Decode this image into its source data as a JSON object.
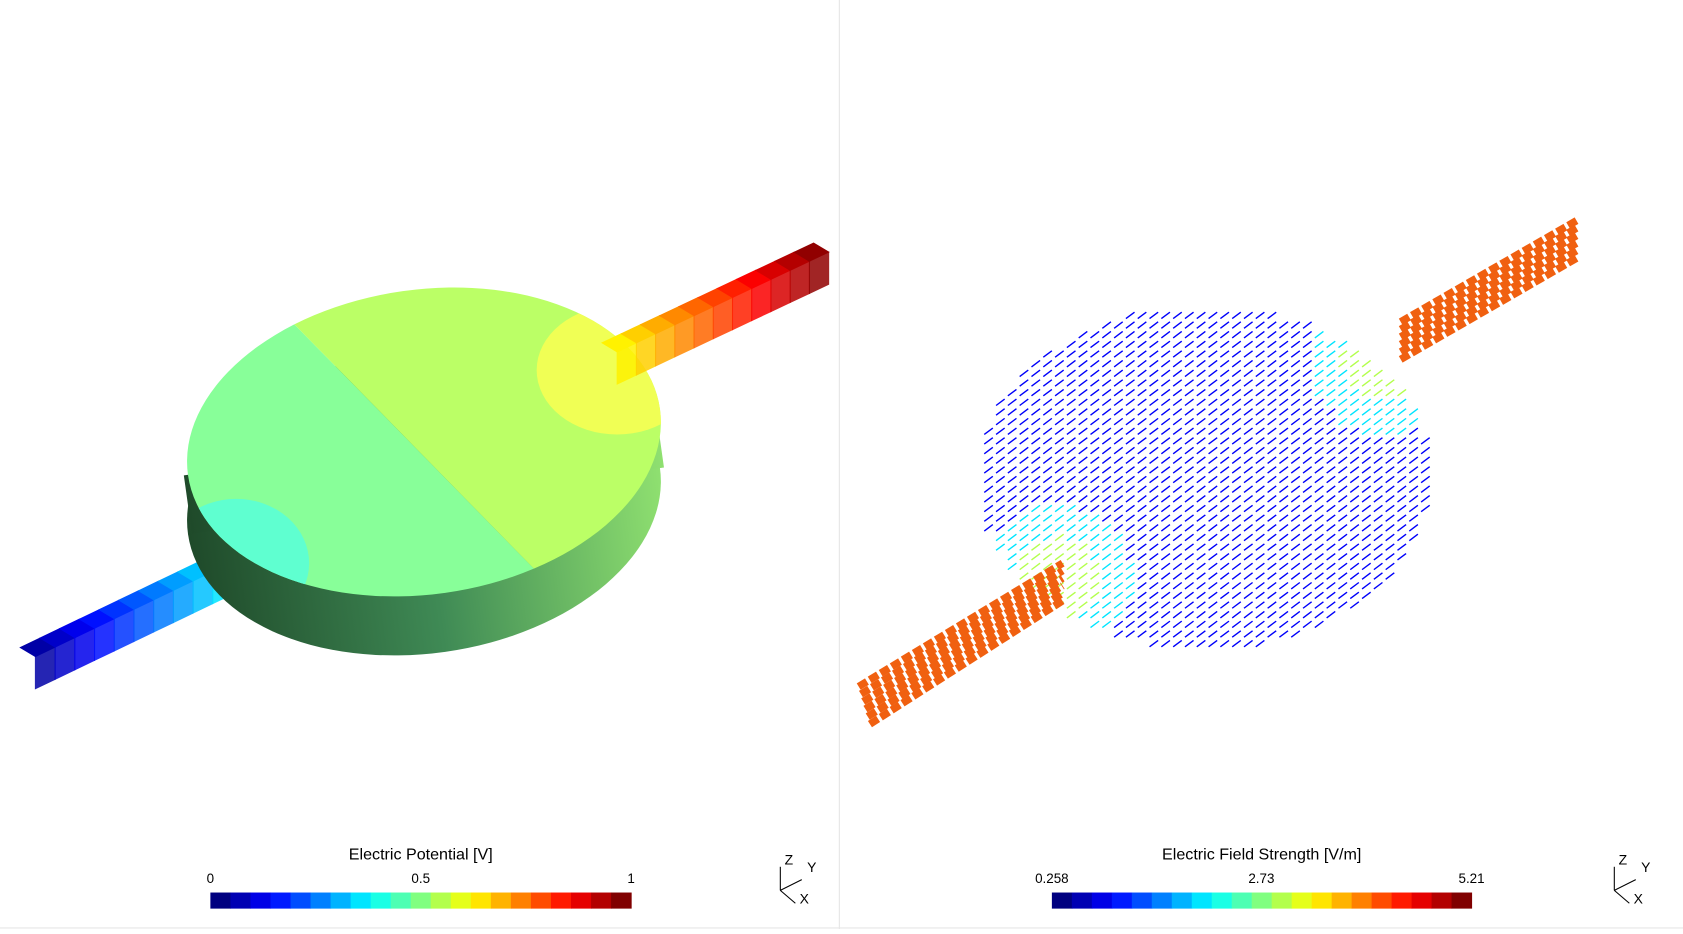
{
  "panels": [
    {
      "colorbar": {
        "title": "Electric Potential [V]",
        "lim": [
          0,
          1
        ],
        "ticks": [
          0,
          0.5,
          1
        ]
      },
      "triad": {
        "z": "Z",
        "y": "Y",
        "x": "X"
      }
    },
    {
      "colorbar": {
        "title": "Electric Field Strength [V/m]",
        "lim": [
          0.258,
          5.21
        ],
        "ticks": [
          0.258,
          2.73,
          5.21
        ]
      },
      "triad": {
        "z": "Z",
        "y": "Y",
        "x": "X"
      }
    }
  ]
}
